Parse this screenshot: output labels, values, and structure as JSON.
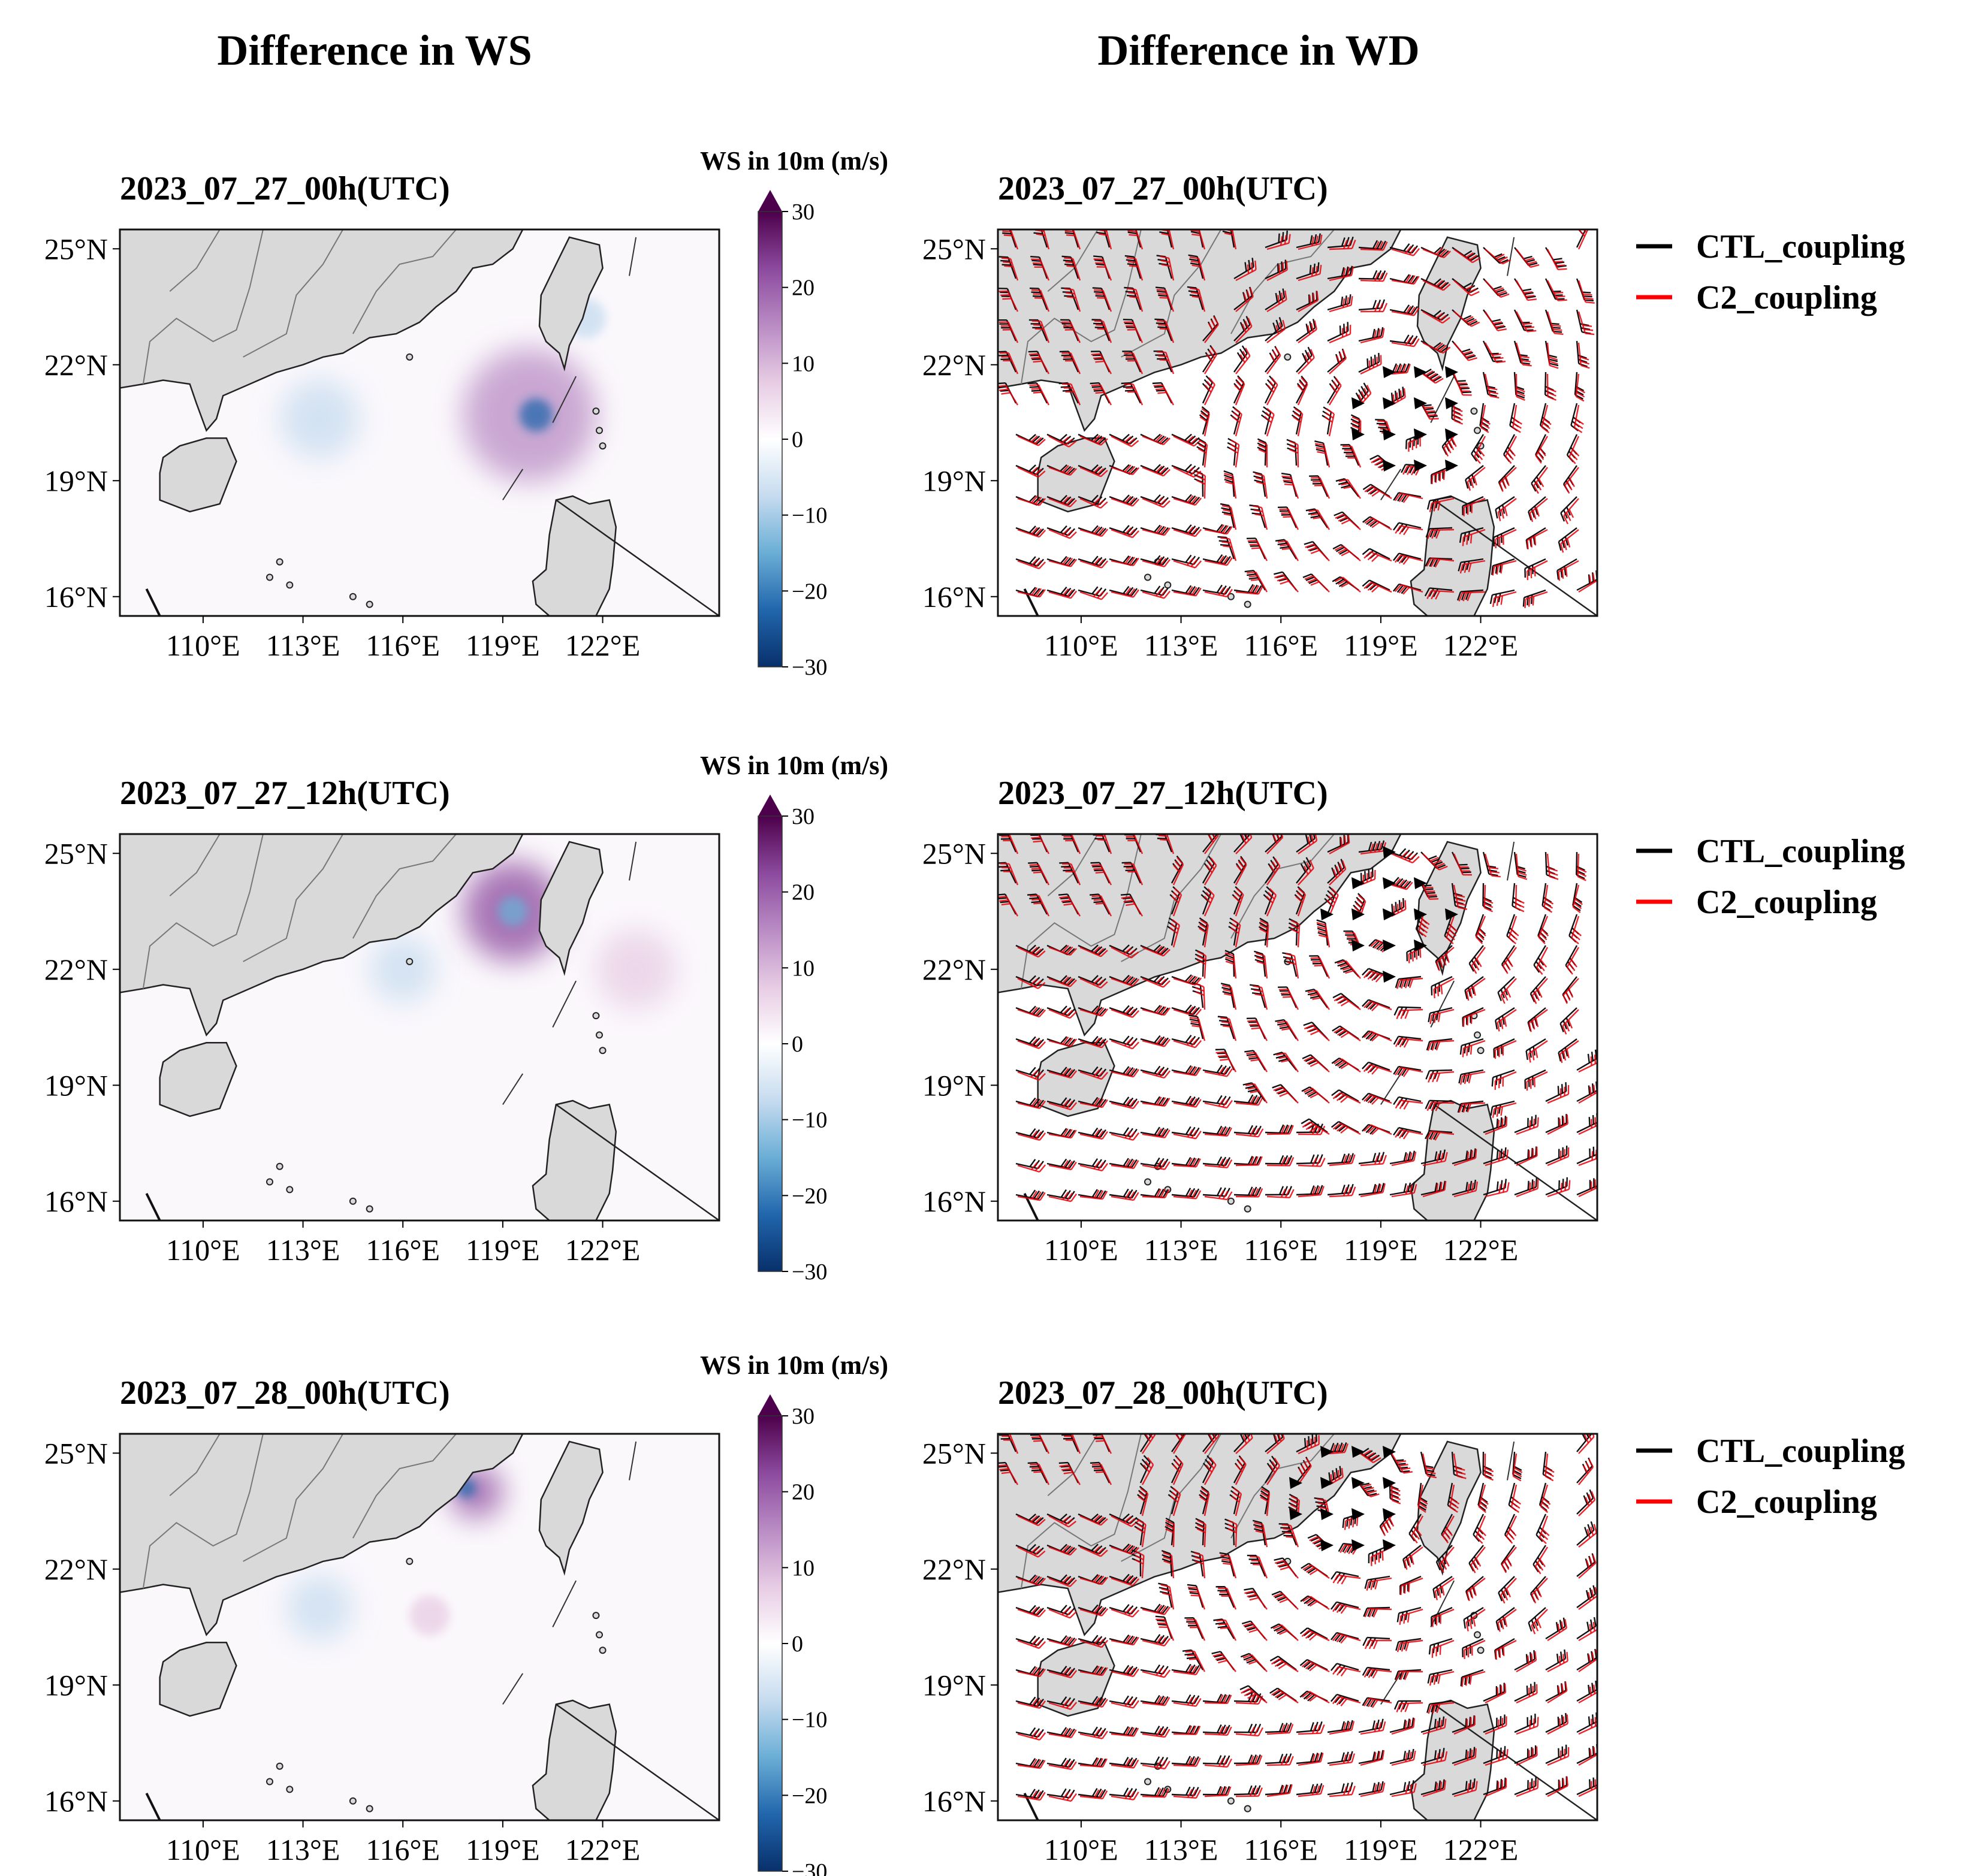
{
  "column_titles": [
    "Difference in WS",
    "Difference in WD"
  ],
  "colorbar": {
    "label": "WS in 10m (m/s)",
    "ticks": [
      "30",
      "20",
      "10",
      "0",
      "−10",
      "−20",
      "−30"
    ],
    "min": -30,
    "max": 30,
    "colors": [
      "#08306b",
      "#2166ac",
      "#6aaed6",
      "#c6dbef",
      "#ffffff",
      "#e7cce4",
      "#b98cc4",
      "#8c4a9e",
      "#4d004b"
    ]
  },
  "map_extent": {
    "lon": [
      107.5,
      125.5
    ],
    "lat": [
      15.5,
      25.5
    ]
  },
  "lon_ticks": [
    "110°E",
    "113°E",
    "116°E",
    "119°E",
    "122°E"
  ],
  "lat_ticks": [
    "25°N",
    "22°N",
    "19°N",
    "16°N"
  ],
  "legend": {
    "ctl": "CTL_coupling",
    "c2": "C2_coupling",
    "ctl_color": "#000000",
    "c2_color": "#ff0000"
  },
  "rows": [
    {
      "time": "2023_07_27_00h(UTC)",
      "ws_features": [
        {
          "lon": 119.8,
          "lat": 20.7,
          "radius_deg": 2.0,
          "value": 14
        },
        {
          "lon": 120.0,
          "lat": 20.7,
          "radius_deg": 0.5,
          "value": -22
        },
        {
          "lon": 113.5,
          "lat": 20.6,
          "radius_deg": 1.2,
          "value": -6
        },
        {
          "lon": 121.5,
          "lat": 23.2,
          "radius_deg": 0.6,
          "value": -8
        }
      ],
      "wind_center": {
        "lon": 119.8,
        "lat": 20.6
      }
    },
    {
      "time": "2023_07_27_12h(UTC)",
      "ws_features": [
        {
          "lon": 119.3,
          "lat": 23.5,
          "radius_deg": 1.5,
          "value": 20
        },
        {
          "lon": 119.3,
          "lat": 23.5,
          "radius_deg": 0.45,
          "value": -15
        },
        {
          "lon": 116.0,
          "lat": 22.0,
          "radius_deg": 1.0,
          "value": -6
        },
        {
          "lon": 123.0,
          "lat": 22.0,
          "radius_deg": 1.2,
          "value": 5
        }
      ],
      "wind_center": {
        "lon": 119.3,
        "lat": 23.4
      }
    },
    {
      "time": "2023_07_28_00h(UTC)",
      "ws_features": [
        {
          "lon": 118.2,
          "lat": 24.0,
          "radius_deg": 0.8,
          "value": 24
        },
        {
          "lon": 117.9,
          "lat": 24.1,
          "radius_deg": 0.3,
          "value": -20
        },
        {
          "lon": 116.8,
          "lat": 20.8,
          "radius_deg": 0.6,
          "value": 10
        },
        {
          "lon": 113.5,
          "lat": 21.0,
          "radius_deg": 1.0,
          "value": -5
        }
      ],
      "wind_center": {
        "lon": 118.0,
        "lat": 23.8
      }
    }
  ]
}
